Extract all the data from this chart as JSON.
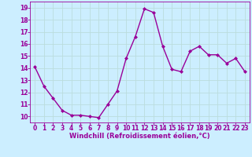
{
  "x": [
    0,
    1,
    2,
    3,
    4,
    5,
    6,
    7,
    8,
    9,
    10,
    11,
    12,
    13,
    14,
    15,
    16,
    17,
    18,
    19,
    20,
    21,
    22,
    23
  ],
  "y": [
    14.1,
    12.5,
    11.5,
    10.5,
    10.1,
    10.1,
    10.0,
    9.9,
    11.0,
    12.1,
    14.8,
    16.6,
    18.9,
    18.6,
    15.8,
    13.9,
    13.7,
    15.4,
    15.8,
    15.1,
    15.1,
    14.4,
    14.8,
    13.7
  ],
  "line_color": "#990099",
  "marker": "D",
  "marker_size": 2.0,
  "bg_color": "#cceeff",
  "grid_color": "#bbdddd",
  "xlabel": "Windchill (Refroidissement éolien,°C)",
  "xlabel_color": "#990099",
  "tick_color": "#990099",
  "ylim": [
    9.5,
    19.5
  ],
  "yticks": [
    10,
    11,
    12,
    13,
    14,
    15,
    16,
    17,
    18,
    19
  ],
  "xlim": [
    -0.5,
    23.5
  ],
  "xticks": [
    0,
    1,
    2,
    3,
    4,
    5,
    6,
    7,
    8,
    9,
    10,
    11,
    12,
    13,
    14,
    15,
    16,
    17,
    18,
    19,
    20,
    21,
    22,
    23
  ],
  "line_width": 1.0,
  "tick_fontsize": 5.5,
  "xlabel_fontsize": 6.0
}
